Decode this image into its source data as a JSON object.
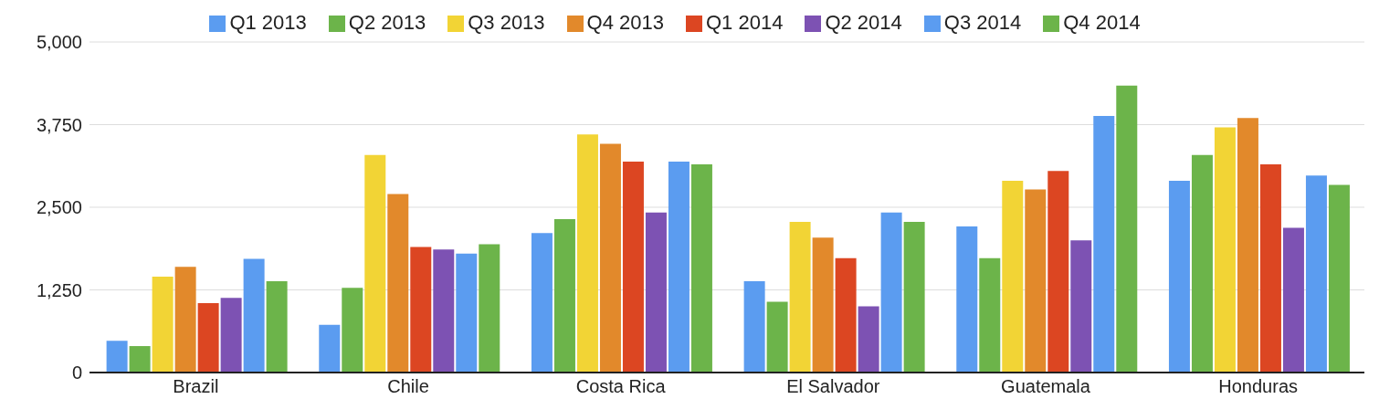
{
  "chart_data": {
    "type": "bar",
    "categories": [
      "Brazil",
      "Chile",
      "Costa Rica",
      "El Salvador",
      "Guatemala",
      "Honduras"
    ],
    "series": [
      {
        "name": "Q1 2013",
        "color": "#5b9cf0",
        "values": [
          480,
          720,
          2110,
          1380,
          2210,
          2900
        ]
      },
      {
        "name": "Q2 2013",
        "color": "#6cb44a",
        "values": [
          400,
          1280,
          2320,
          1070,
          1730,
          3290
        ]
      },
      {
        "name": "Q3 2013",
        "color": "#f2d435",
        "values": [
          1450,
          3290,
          3600,
          2280,
          2900,
          3710
        ]
      },
      {
        "name": "Q4 2013",
        "color": "#e2892b",
        "values": [
          1600,
          2700,
          3460,
          2040,
          2770,
          3850
        ]
      },
      {
        "name": "Q1 2014",
        "color": "#dc4622",
        "values": [
          1050,
          1900,
          3190,
          1730,
          3050,
          3150
        ]
      },
      {
        "name": "Q2 2014",
        "color": "#7d52b3",
        "values": [
          1130,
          1860,
          2420,
          1000,
          2000,
          2190
        ]
      },
      {
        "name": "Q3 2014",
        "color": "#5b9cf0",
        "values": [
          1720,
          1800,
          3190,
          2420,
          3880,
          2980
        ]
      },
      {
        "name": "Q4 2014",
        "color": "#6cb44a",
        "values": [
          1380,
          1940,
          3150,
          2280,
          4340,
          2840
        ]
      }
    ],
    "ylim": [
      0,
      5000
    ],
    "yticks": [
      0,
      {
        "value": 1250,
        "label": "1,250"
      },
      {
        "value": 2500,
        "label": "2,500"
      },
      {
        "value": 3750,
        "label": "3,750"
      },
      {
        "value": 5000,
        "label": "5,000"
      }
    ],
    "grid": "y",
    "legend": "top"
  }
}
